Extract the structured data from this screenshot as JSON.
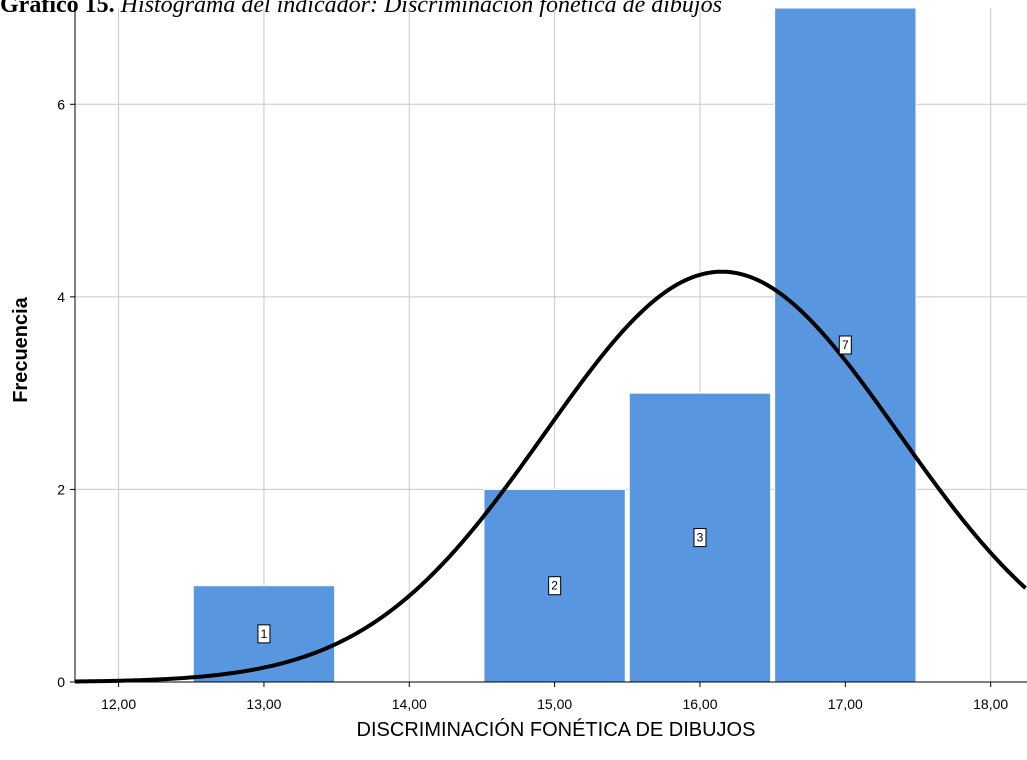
{
  "caption": {
    "bold": "Gráfico 15.",
    "italic": "Histograma del indicador: Discriminación fonética de dibujos"
  },
  "chart_data": {
    "type": "bar",
    "title": "",
    "xlabel": "DISCRIMINACIÓN FONÉTICA DE DIBUJOS",
    "ylabel": "Frecuencia",
    "xlim": [
      11.7,
      18.25
    ],
    "ylim": [
      0,
      7.0
    ],
    "x_ticks": [
      "12,00",
      "13,00",
      "14,00",
      "15,00",
      "16,00",
      "17,00",
      "18,00"
    ],
    "x_tick_values": [
      12,
      13,
      14,
      15,
      16,
      17,
      18
    ],
    "y_ticks": [
      "0",
      "2",
      "4",
      "6"
    ],
    "y_tick_values": [
      0,
      2,
      4,
      6
    ],
    "grid": true,
    "bar_color": "#5896e0",
    "bars": [
      {
        "x": 13,
        "value": 1,
        "label": "1"
      },
      {
        "x": 15,
        "value": 2,
        "label": "2"
      },
      {
        "x": 16,
        "value": 3,
        "label": "3"
      },
      {
        "x": 17,
        "value": 7,
        "label": "7"
      }
    ],
    "normal_curve": {
      "mean": 16.15,
      "sd": 1.217,
      "n": 13,
      "bin_width": 1,
      "color": "#000000"
    }
  }
}
